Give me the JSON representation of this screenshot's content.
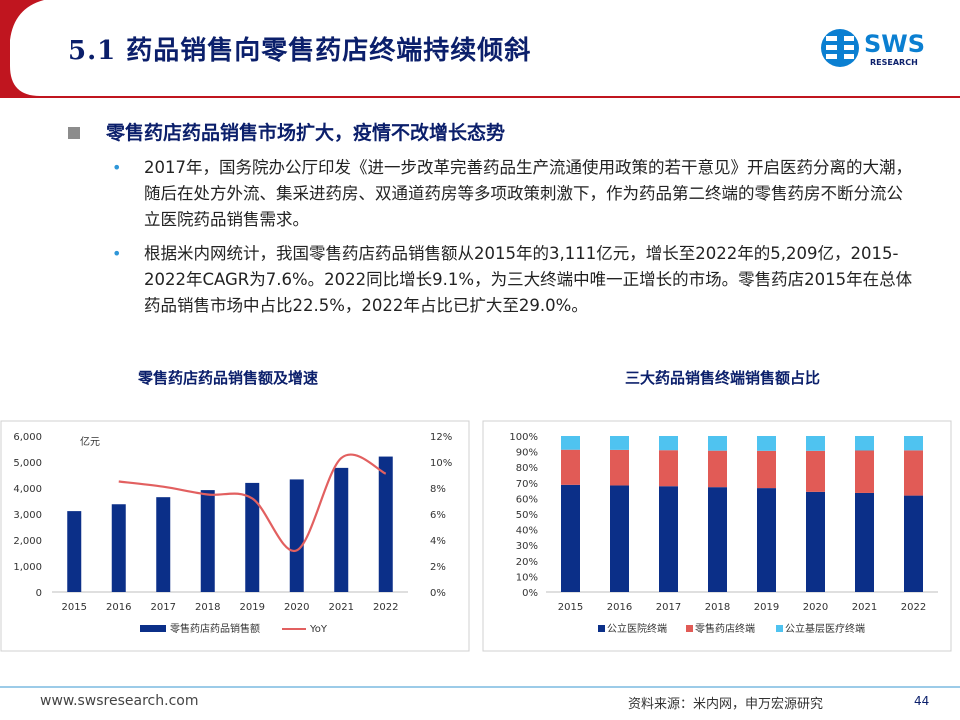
{
  "header": {
    "title": "5.1 药品销售向零售药店终端持续倾斜"
  },
  "logo": {
    "brand": "SWS",
    "sub": "RESEARCH",
    "colors": {
      "blue": "#0b7fd1",
      "navy": "#0b1f6b"
    }
  },
  "section": {
    "heading": "零售药店药品销售市场扩大，疫情不改增长态势",
    "bullets": [
      "2017年，国务院办公厅印发《进一步改革完善药品生产流通使用政策的若干意见》开启医药分离的大潮，随后在处方外流、集采进药房、双通道药房等多项政策刺激下，作为药品第二终端的零售药房不断分流公立医院药品销售需求。",
      "根据米内网统计，我国零售药店药品销售额从2015年的3,111亿元，增长至2022年的5,209亿，2015-2022年CAGR为7.6%。2022同比增长9.1%，为三大终端中唯一正增长的市场。零售药店2015年在总体药品销售市场中占比22.5%，2022年占比已扩大至29.0%。"
    ]
  },
  "colors": {
    "accent_red": "#c0151f",
    "navy": "#0b1f6b",
    "bar_blue": "#0b2f88",
    "line_red": "#e26060",
    "seg_red": "#e15b56",
    "seg_cyan": "#4fc3f0",
    "footer_line": "#9ccbe8"
  },
  "chart_data": [
    {
      "type": "bar",
      "title": "零售药店药品销售额及增速",
      "unit_label": "亿元",
      "categories": [
        "2015",
        "2016",
        "2017",
        "2018",
        "2019",
        "2020",
        "2021",
        "2022"
      ],
      "series": [
        {
          "name": "零售药店药品销售额",
          "type": "bar",
          "axis": "left",
          "color": "#0b2f88",
          "values": [
            3111,
            3375,
            3647,
            3919,
            4196,
            4330,
            4774,
            5209
          ]
        },
        {
          "name": "YoY",
          "type": "line",
          "axis": "right",
          "color": "#e26060",
          "values": [
            null,
            8.5,
            8.1,
            7.5,
            7.2,
            3.2,
            10.3,
            9.1
          ]
        }
      ],
      "ylim_left": [
        0,
        6000
      ],
      "yticks_left": [
        "0",
        "1,000",
        "2,000",
        "3,000",
        "4,000",
        "5,000",
        "6,000"
      ],
      "ylim_right": [
        0,
        12
      ],
      "yticks_right": [
        "0%",
        "2%",
        "4%",
        "6%",
        "8%",
        "10%",
        "12%"
      ],
      "legend": "bottom"
    },
    {
      "type": "bar",
      "stacked": true,
      "title": "三大药品销售终端销售额占比",
      "categories": [
        "2015",
        "2016",
        "2017",
        "2018",
        "2019",
        "2020",
        "2021",
        "2022"
      ],
      "series": [
        {
          "name": "公立医院终端",
          "color": "#0b2f88",
          "values": [
            68.7,
            68.3,
            67.8,
            67.2,
            66.6,
            64.2,
            63.5,
            61.8
          ]
        },
        {
          "name": "零售药店终端",
          "color": "#e15b56",
          "values": [
            22.5,
            22.8,
            23.1,
            23.4,
            23.9,
            26.3,
            27.2,
            29.0
          ]
        },
        {
          "name": "公立基层医疗终端",
          "color": "#4fc3f0",
          "values": [
            8.8,
            8.9,
            9.1,
            9.4,
            9.5,
            9.5,
            9.3,
            9.2
          ]
        }
      ],
      "ylim": [
        0,
        100
      ],
      "yticks": [
        "0%",
        "10%",
        "20%",
        "30%",
        "40%",
        "50%",
        "60%",
        "70%",
        "80%",
        "90%",
        "100%"
      ],
      "legend": "bottom"
    }
  ],
  "footer": {
    "website": "www.swsresearch.com",
    "source": "资料来源：米内网，申万宏源研究",
    "page": "44"
  }
}
